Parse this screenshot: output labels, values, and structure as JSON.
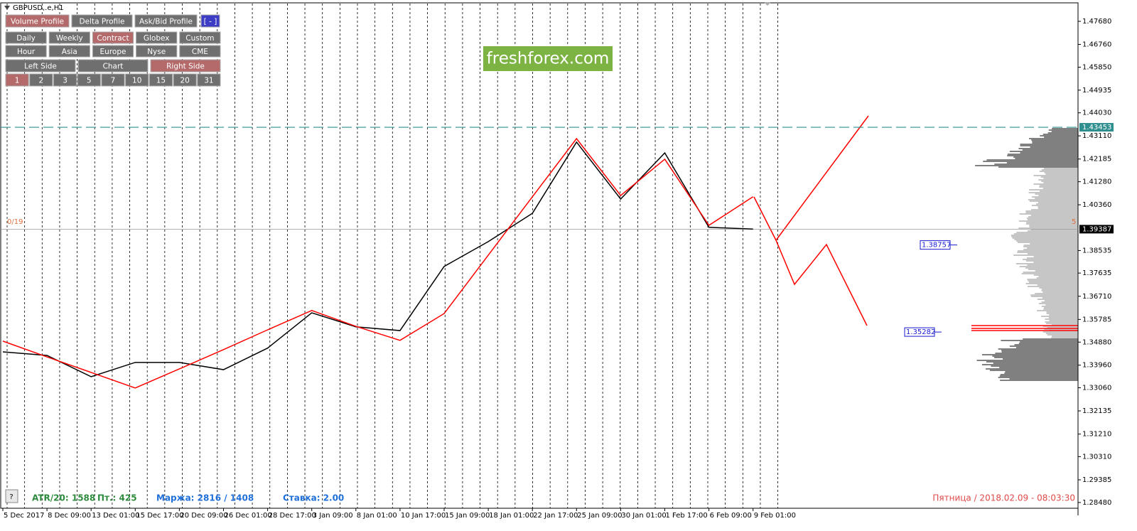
{
  "window_title": "GBPUSD,.e,H1",
  "watermark": "freshforex.com",
  "panel": {
    "rows": [
      [
        {
          "label": "Volume Profile",
          "color": "#b46a6a"
        },
        {
          "label": "Delta Profile",
          "color": "#6f6f6f"
        },
        {
          "label": "Ask/Bid Profile",
          "color": "#6f6f6f"
        },
        {
          "label": "[ - ]",
          "color": "#3c3cc4"
        }
      ],
      [
        {
          "label": "Daily",
          "color": "#6f6f6f"
        },
        {
          "label": "Weekly",
          "color": "#6f6f6f"
        },
        {
          "label": "Contract",
          "color": "#b46a6a"
        },
        {
          "label": "Globex",
          "color": "#6f6f6f"
        },
        {
          "label": "Custom",
          "color": "#6f6f6f"
        }
      ],
      [
        {
          "label": "Hour",
          "color": "#6f6f6f"
        },
        {
          "label": "Asia",
          "color": "#6f6f6f"
        },
        {
          "label": "Europe",
          "color": "#6f6f6f"
        },
        {
          "label": "Nyse",
          "color": "#6f6f6f"
        },
        {
          "label": "CME",
          "color": "#6f6f6f"
        }
      ],
      [
        {
          "label": "Left Side",
          "color": "#6f6f6f"
        },
        {
          "label": "Chart",
          "color": "#6f6f6f"
        },
        {
          "label": "Right Side",
          "color": "#b46a6a"
        }
      ],
      [
        {
          "label": "1",
          "color": "#b46a6a"
        },
        {
          "label": "2",
          "color": "#6f6f6f"
        },
        {
          "label": "3",
          "color": "#6f6f6f"
        },
        {
          "label": "5",
          "color": "#6f6f6f"
        },
        {
          "label": "7",
          "color": "#6f6f6f"
        },
        {
          "label": "10",
          "color": "#6f6f6f"
        },
        {
          "label": "15",
          "color": "#6f6f6f"
        },
        {
          "label": "20",
          "color": "#6f6f6f"
        },
        {
          "label": "31",
          "color": "#6f6f6f"
        }
      ]
    ]
  },
  "status": {
    "help": "?",
    "atr": "ATR/20: 1588",
    "pt": "Пт.: 425",
    "margin": "Маржа: 2816 / 1408",
    "rate": "Ставка: 2.00",
    "datetime": "Пятница / 2018.02.09 - 08:03:30",
    "left_counter": "0/19",
    "right_counter": "5"
  },
  "chart_data": {
    "type": "line",
    "categories": [
      "5 Dec 2017",
      "8 Dec 09:00",
      "13 Dec 01:00",
      "15 Dec 17:00",
      "20 Dec 09:00",
      "26 Dec 01:00",
      "28 Dec 17:00",
      "3 Jan 09:00",
      "8 Jan 01:00",
      "10 Jan 17:00",
      "15 Jan 09:00",
      "18 Jan 01:00",
      "22 Jan 17:00",
      "25 Jan 09:00",
      "30 Jan 01:00",
      "1 Feb 17:00",
      "6 Feb 09:00",
      "9 Feb 01:00"
    ],
    "series": [
      {
        "color": "#000000",
        "values": [
          1.3449,
          1.3435,
          1.335,
          1.3407,
          1.3407,
          1.3378,
          1.3464,
          1.3605,
          1.3549,
          1.3534,
          1.379,
          1.3889,
          1.4002,
          1.4286,
          1.4059,
          1.4243,
          1.3946,
          1.3939
        ]
      },
      {
        "color": "#ff0000",
        "values": [
          1.3492,
          1.3429,
          1.3367,
          1.3305,
          1.3381,
          1.3458,
          1.3537,
          1.3614,
          1.3551,
          1.3495,
          1.3602,
          1.3835,
          1.4068,
          1.43,
          1.4073,
          1.4218,
          1.3954,
          1.4068
        ]
      }
    ],
    "ylim": [
      1.2825,
      1.4839
    ],
    "yticks": [
      {
        "value": 1.4768,
        "label": "1.47680"
      },
      {
        "value": 1.4676,
        "label": "1.46760"
      },
      {
        "value": 1.4585,
        "label": "1.45850"
      },
      1.44935,
      {
        "value": 1.4403,
        "label": "1.44030"
      },
      {
        "value": 1.4311,
        "label": "1.43110"
      },
      1.42185,
      {
        "value": 1.4128,
        "label": "1.41280"
      },
      {
        "value": 1.4036,
        "label": "1.40360"
      },
      1.38535,
      1.37635,
      {
        "value": 1.3671,
        "label": "1.36710"
      },
      1.35785,
      {
        "value": 1.3488,
        "label": "1.34880"
      },
      {
        "value": 1.3396,
        "label": "1.33960"
      },
      {
        "value": 1.3306,
        "label": "1.33060"
      },
      1.32135,
      {
        "value": 1.3121,
        "label": "1.31210"
      },
      {
        "value": 1.3031,
        "label": "1.30310"
      },
      1.29385,
      {
        "value": 1.2848,
        "label": "1.28480"
      }
    ],
    "levels": [
      {
        "value": 1.43453,
        "color": "#2f8f8f",
        "style": "dashed"
      },
      {
        "value": 1.39387,
        "color": "#000000",
        "style": "current"
      }
    ],
    "price_marks": [
      1.38757,
      1.35282
    ]
  }
}
